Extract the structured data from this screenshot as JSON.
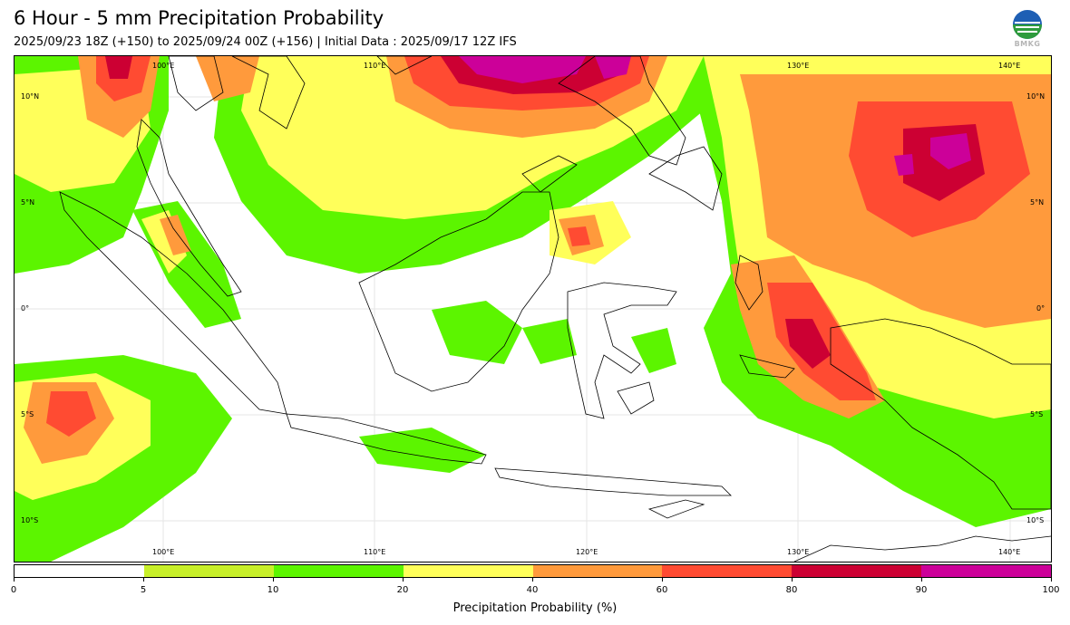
{
  "header": {
    "title": "6 Hour - 5 mm Precipitation Probability",
    "subtitle": "2025/09/23 18Z (+150) to 2025/09/24 00Z (+156) | Initial Data : 2025/09/17 12Z IFS",
    "logo_text": "BMKG"
  },
  "map": {
    "lon_labels_top": [
      "100°E",
      "110°E",
      "130°E",
      "140°E"
    ],
    "lon_labels_bottom": [
      "100°E",
      "110°E",
      "120°E",
      "130°E",
      "140°E"
    ],
    "lat_labels_left": [
      "10°N",
      "5°N",
      "0°",
      "5°S",
      "10°S"
    ],
    "lat_labels_right": [
      "10°N",
      "5°N",
      "0°",
      "5°S",
      "10°S"
    ]
  },
  "colorbar": {
    "title": "Precipitation Probability (%)",
    "ticks": [
      "0",
      "5",
      "10",
      "20",
      "40",
      "60",
      "80",
      "90",
      "100"
    ],
    "colors": [
      "#ffffff",
      "#c8f02a",
      "#5cf500",
      "#ffff5a",
      "#ff9a3c",
      "#ff4b32",
      "#cc0033",
      "#cc0099"
    ]
  }
}
